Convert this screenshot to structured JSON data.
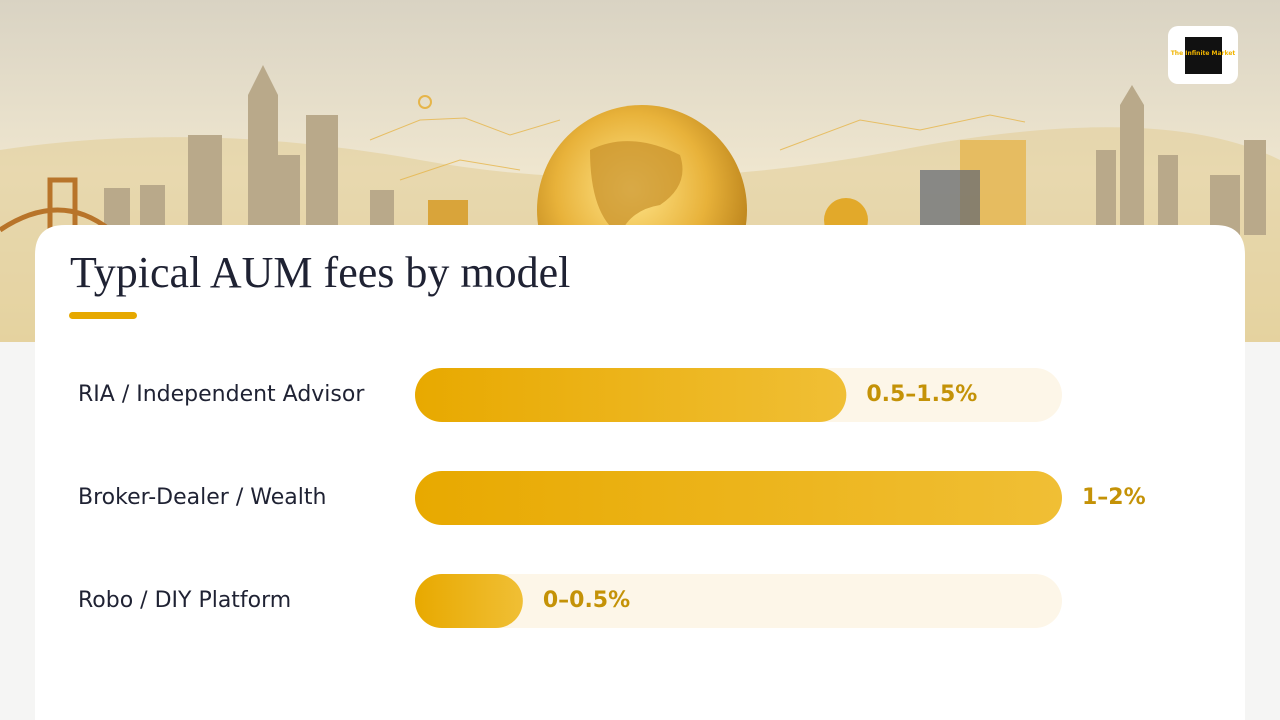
{
  "chart_data": {
    "type": "bar",
    "orientation": "horizontal",
    "title": "Typical AUM fees by model",
    "categories": [
      "RIA / Independent Advisor",
      "Broker-Dealer / Wealth",
      "Robo / DIY Platform"
    ],
    "values": [
      1,
      1.5,
      0.25
    ],
    "value_labels": [
      "0.5–1.5%",
      "1–2%",
      "0–0.5%"
    ],
    "xlim": [
      0,
      1.5
    ],
    "color": "#e9ab06",
    "track_color": "#fdf6e8",
    "label_color": "#c49207"
  },
  "logo": {
    "text": "The Infinite Market"
  }
}
